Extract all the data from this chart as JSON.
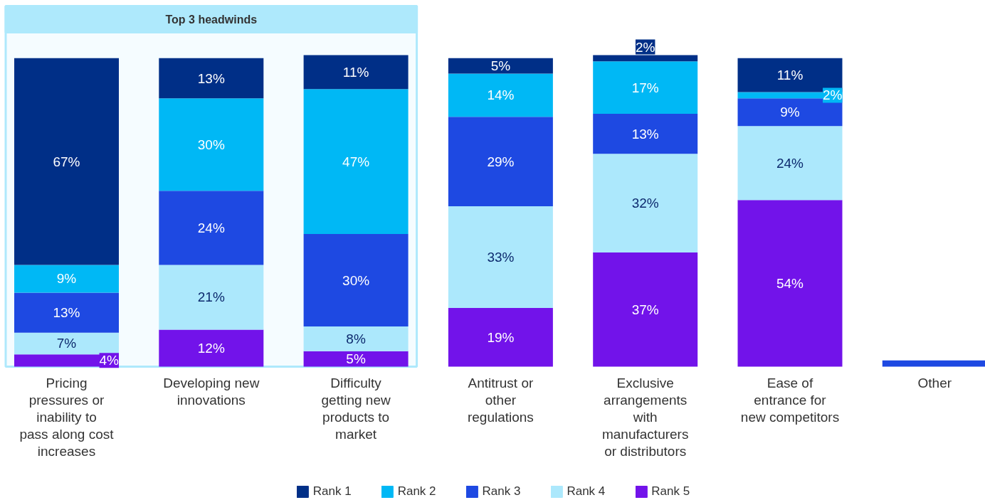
{
  "chart_data": {
    "type": "bar",
    "stacked": true,
    "data_labels": true,
    "grid": false,
    "legend": "bottom",
    "ylim": [
      0,
      101
    ],
    "tick_labels": "x",
    "categories": [
      "Pricing pressures or inability to pass along cost increases",
      "Developing new innovations",
      "Difficulty getting new products to market",
      "Antitrust or other regulations",
      "Exclusive arrangements with manufacturers or distributors",
      "Ease of entrance for new competitors",
      "Other"
    ],
    "series": [
      {
        "name": "Rank 5",
        "color": "#7213ea",
        "values": [
          4,
          12,
          5,
          19,
          37,
          54,
          null
        ],
        "value_labels": [
          "4%",
          "12%",
          "5%",
          "19%",
          "37%",
          "54%",
          null
        ]
      },
      {
        "name": "Rank 4",
        "color": "#ace8fc",
        "values": [
          7,
          21,
          8,
          33,
          32,
          24,
          null
        ],
        "value_labels": [
          "7%",
          "21%",
          "8%",
          "33%",
          "32%",
          "24%",
          null
        ]
      },
      {
        "name": "Rank 3",
        "color": "#1e49e2",
        "values": [
          13,
          24,
          30,
          29,
          13,
          9,
          2
        ],
        "value_labels": [
          "13%",
          "24%",
          "30%",
          "29%",
          "13%",
          "9%",
          null
        ]
      },
      {
        "name": "Rank 2",
        "color": "#00b8f5",
        "values": [
          9,
          30,
          47,
          14,
          17,
          2,
          null
        ],
        "value_labels": [
          "9%",
          "30%",
          "47%",
          "14%",
          "17%",
          "2%",
          null
        ]
      },
      {
        "name": "Rank 1",
        "color": "#002f87",
        "values": [
          67,
          13,
          11,
          5,
          2,
          11,
          null
        ],
        "value_labels": [
          "67%",
          "13%",
          "11%",
          "5%",
          "2%",
          "11%",
          null
        ]
      }
    ],
    "bands": [
      {
        "axis": "x",
        "from": "Pricing pressures or inability to pass along cost increases",
        "to": "Difficulty getting new products to market",
        "label": "Top 3 headwinds",
        "color": "#aee9fc"
      }
    ]
  }
}
